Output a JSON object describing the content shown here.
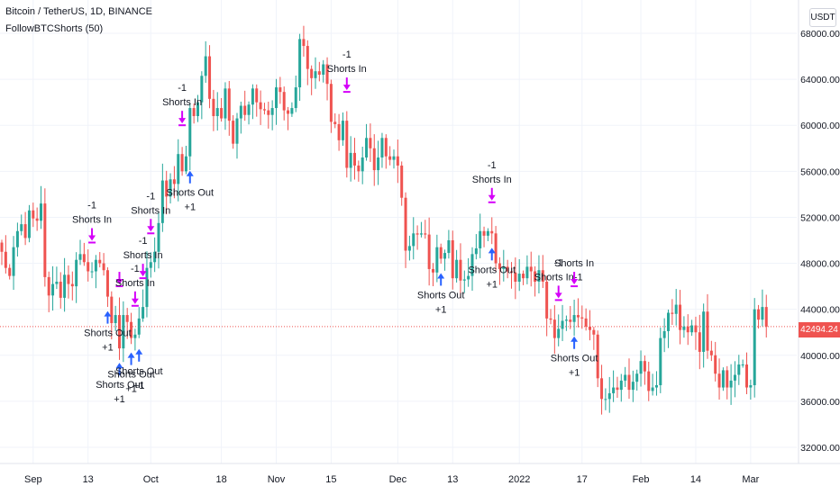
{
  "header": {
    "title": "Bitcoin / TetherUS, 1D, BINANCE",
    "indicator": "FollowBTCShorts (50)",
    "currency": "USDT"
  },
  "last_price": "42494.24",
  "colors": {
    "up": "#26a69a",
    "down": "#ef5350",
    "shorts_in": "#d500f9",
    "shorts_out": "#2962ff",
    "price_line": "#ef5350",
    "grid": "#f0f3fa",
    "axis_text": "#131722"
  },
  "chart_data": {
    "type": "candlestick",
    "symbol": "Bitcoin / TetherUS",
    "interval": "1D",
    "exchange": "BINANCE",
    "ylim": [
      30000,
      70000
    ],
    "yticks": [
      32000,
      36000,
      40000,
      44000,
      48000,
      52000,
      56000,
      60000,
      64000,
      68000
    ],
    "ytick_labels": [
      "32000.00",
      "36000.00",
      "40000.00",
      "44000.00",
      "48000.00",
      "52000.00",
      "56000.00",
      "60000.00",
      "64000.00",
      "68000.00"
    ],
    "xtick_labels": [
      "Sep",
      "13",
      "Oct",
      "18",
      "Nov",
      "15",
      "Dec",
      "13",
      "2022",
      "17",
      "Feb",
      "14",
      "Mar"
    ],
    "xtick_index": [
      8,
      22,
      38,
      56,
      70,
      84,
      101,
      115,
      132,
      148,
      163,
      177,
      191
    ],
    "closes": [
      49000,
      47600,
      46900,
      49400,
      50800,
      51400,
      50200,
      52600,
      51900,
      51700,
      53200,
      46800,
      45200,
      46200,
      46400,
      45000,
      47000,
      46200,
      46000,
      48300,
      48800,
      48100,
      47300,
      47300,
      48300,
      48000,
      47400,
      45100,
      42800,
      43500,
      40600,
      43500,
      42900,
      41500,
      41800,
      43200,
      44200,
      47600,
      48100,
      49000,
      51500,
      55200,
      53800,
      55300,
      54900,
      57500,
      56000,
      57300,
      61500,
      60800,
      62000,
      64300,
      66000,
      62300,
      60800,
      61500,
      60600,
      63200,
      60400,
      58400,
      60600,
      61700,
      60900,
      61800,
      63200,
      62000,
      61400,
      61300,
      60900,
      61500,
      63300,
      62900,
      61300,
      61000,
      61500,
      63300,
      67500,
      66900,
      64900,
      64100,
      64700,
      64400,
      65300,
      63600,
      60300,
      60100,
      58700,
      60400,
      56300,
      57600,
      56500,
      56000,
      57200,
      58900,
      58000,
      56100,
      57200,
      58900,
      57300,
      57000,
      57300,
      56500,
      53700,
      49100,
      49500,
      50600,
      50500,
      50600,
      50500,
      47500,
      47200,
      49400,
      48400,
      48900,
      50000,
      46700,
      48300,
      46500,
      46600,
      46900,
      48800,
      49300,
      50800,
      50400,
      50800,
      50600,
      48000,
      47500,
      47700,
      47300,
      47200,
      46400,
      47100,
      46700,
      47700,
      47300,
      46400,
      47400,
      46400,
      43200,
      43100,
      41500,
      42300,
      43000,
      43100,
      42900,
      43500,
      43300,
      43200,
      42500,
      42200,
      41800,
      38000,
      36200,
      36200,
      36700,
      37200,
      37000,
      37800,
      38300,
      37000,
      37700,
      38400,
      39500,
      38600,
      36900,
      37200,
      37400,
      41500,
      42100,
      43700,
      43600,
      44400,
      42200,
      42500,
      42000,
      42600,
      42000,
      40300,
      43800,
      40400,
      40000,
      38400,
      37200,
      38700,
      37200,
      37800,
      38300,
      39200,
      39200,
      37200,
      37400,
      44000,
      43100,
      44200,
      42494
    ],
    "signals": [
      {
        "type": "Shorts In",
        "index": 23,
        "label_top": "-1",
        "label_bottom": "Shorts In"
      },
      {
        "type": "Shorts In",
        "index": 30,
        "label_top": "",
        "label_bottom": ""
      },
      {
        "type": "Shorts In",
        "index": 34,
        "label_top": "-1",
        "label_bottom": "Shorts In"
      },
      {
        "type": "Shorts In",
        "index": 36,
        "label_top": "-1",
        "label_bottom": "Shorts In"
      },
      {
        "type": "Shorts In",
        "index": 38,
        "label_top": "-1",
        "label_bottom": "Shorts In"
      },
      {
        "type": "Shorts In",
        "index": 46,
        "label_top": "-1",
        "label_bottom": "Shorts In"
      },
      {
        "type": "Shorts In",
        "index": 88,
        "label_top": "-1",
        "label_bottom": "Shorts In"
      },
      {
        "type": "Shorts In",
        "index": 125,
        "label_top": "-1",
        "label_bottom": "Shorts In"
      },
      {
        "type": "Shorts In",
        "index": 142,
        "label_top": "-1",
        "label_bottom": "Shorts In-1"
      },
      {
        "type": "Shorts In",
        "index": 146,
        "label_top": "",
        "label_bottom": "Shorts In"
      },
      {
        "type": "Shorts Out",
        "index": 27,
        "label_top": "Shorts Out",
        "label_bottom": "+1"
      },
      {
        "type": "Shorts Out",
        "index": 30,
        "label_top": "Shorts Out",
        "label_bottom": "+1"
      },
      {
        "type": "Shorts Out",
        "index": 33,
        "label_top": "Shorts Out",
        "label_bottom": "+1"
      },
      {
        "type": "Shorts Out",
        "index": 35,
        "label_top": "Shorts Out",
        "label_bottom": "+1"
      },
      {
        "type": "Shorts Out",
        "index": 48,
        "label_top": "Shorts Out",
        "label_bottom": "+1"
      },
      {
        "type": "Shorts Out",
        "index": 112,
        "label_top": "Shorts Out",
        "label_bottom": "+1"
      },
      {
        "type": "Shorts Out",
        "index": 125,
        "label_top": "Shorts Out",
        "label_bottom": "+1"
      },
      {
        "type": "Shorts Out",
        "index": 146,
        "label_top": "Shorts Out",
        "label_bottom": "+1"
      },
      {
        "type": "Shorts Out",
        "index": 201,
        "label_top": "Shorts Out",
        "label_bottom": "+1"
      }
    ]
  }
}
